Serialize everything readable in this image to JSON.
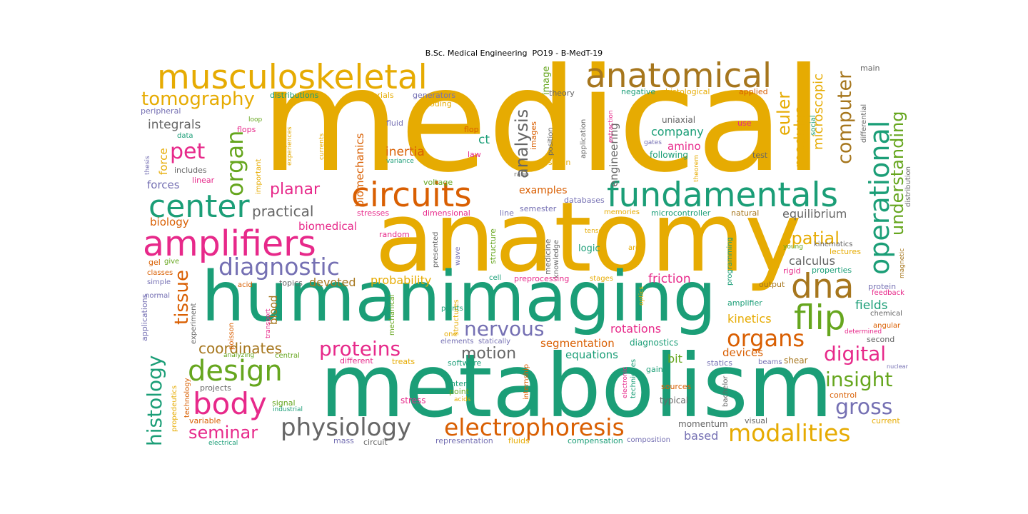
{
  "title": "B.Sc. Medical Engineering  PO19 - B-MedT-19",
  "colors": {
    "gold": "#e6ab02",
    "teal": "#1b9e77",
    "orange": "#d95f02",
    "magenta": "#e7298a",
    "purple": "#7570b3",
    "green": "#66a61e",
    "brown": "#a6761d",
    "gray": "#666666"
  },
  "words": [
    {
      "text": "medical",
      "color": "gold"
    },
    {
      "text": "anatomy",
      "color": "gold"
    },
    {
      "text": "metabolism",
      "color": "teal"
    },
    {
      "text": "human",
      "color": "teal"
    },
    {
      "text": "imaging",
      "color": "teal"
    },
    {
      "text": "musculoskeletal",
      "color": "gold"
    },
    {
      "text": "anatomical",
      "color": "brown"
    },
    {
      "text": "fundamentals",
      "color": "teal"
    },
    {
      "text": "amplifiers",
      "color": "magenta"
    },
    {
      "text": "circuits",
      "color": "orange"
    },
    {
      "text": "center",
      "color": "teal"
    },
    {
      "text": "diagnostic",
      "color": "purple"
    },
    {
      "text": "dna",
      "color": "brown"
    },
    {
      "text": "flip",
      "color": "green"
    },
    {
      "text": "design",
      "color": "green"
    },
    {
      "text": "body",
      "color": "magenta"
    },
    {
      "text": "physiology",
      "color": "gray"
    },
    {
      "text": "electrophoresis",
      "color": "orange"
    },
    {
      "text": "modalities",
      "color": "gold"
    },
    {
      "text": "operational",
      "color": "teal"
    },
    {
      "text": "understanding",
      "color": "green"
    },
    {
      "text": "computer",
      "color": "brown"
    },
    {
      "text": "organ",
      "color": "green"
    },
    {
      "text": "pet",
      "color": "magenta"
    },
    {
      "text": "tomography",
      "color": "gold"
    },
    {
      "text": "organs",
      "color": "orange"
    },
    {
      "text": "nervous",
      "color": "purple"
    },
    {
      "text": "proteins",
      "color": "magenta"
    },
    {
      "text": "digital",
      "color": "magenta"
    },
    {
      "text": "insight",
      "color": "green"
    },
    {
      "text": "gross",
      "color": "purple"
    },
    {
      "text": "histology",
      "color": "teal"
    },
    {
      "text": "tissue",
      "color": "orange"
    },
    {
      "text": "seminar",
      "color": "magenta"
    },
    {
      "text": "analysis",
      "color": "gray"
    },
    {
      "text": "spatial",
      "color": "gold"
    },
    {
      "text": "euler",
      "color": "gold"
    },
    {
      "text": "modulus",
      "color": "gold"
    },
    {
      "text": "microscopic",
      "color": "gold"
    },
    {
      "text": "practical",
      "color": "gray"
    },
    {
      "text": "planar",
      "color": "magenta"
    },
    {
      "text": "coordinates",
      "color": "brown"
    },
    {
      "text": "motion",
      "color": "gray"
    },
    {
      "text": "integrals",
      "color": "gray"
    },
    {
      "text": "biomechanics",
      "color": "orange"
    },
    {
      "text": "engineering",
      "color": "gray"
    },
    {
      "text": "image",
      "color": "green"
    },
    {
      "text": "inertia",
      "color": "orange"
    },
    {
      "text": "ct",
      "color": "teal"
    },
    {
      "text": "company",
      "color": "teal"
    },
    {
      "text": "amino",
      "color": "magenta"
    },
    {
      "text": "equilibrium",
      "color": "gray"
    },
    {
      "text": "calculus",
      "color": "gray"
    },
    {
      "text": "kinetics",
      "color": "gold"
    },
    {
      "text": "fields",
      "color": "teal"
    },
    {
      "text": "segmentation",
      "color": "orange"
    },
    {
      "text": "rotations",
      "color": "magenta"
    },
    {
      "text": "friction",
      "color": "magenta"
    },
    {
      "text": "probability",
      "color": "gold"
    },
    {
      "text": "devoted",
      "color": "brown"
    },
    {
      "text": "biomedical",
      "color": "magenta"
    },
    {
      "text": "biology",
      "color": "orange"
    },
    {
      "text": "forces",
      "color": "purple"
    },
    {
      "text": "force",
      "color": "gold"
    },
    {
      "text": "blood",
      "color": "brown"
    },
    {
      "text": "examples",
      "color": "orange"
    },
    {
      "text": "equations",
      "color": "teal"
    },
    {
      "text": "bit",
      "color": "green"
    },
    {
      "text": "devices",
      "color": "orange"
    },
    {
      "text": "based",
      "color": "purple"
    },
    {
      "text": "logic",
      "color": "teal"
    },
    {
      "text": "momentum",
      "color": "gray"
    },
    {
      "text": "includes",
      "color": "gray"
    },
    {
      "text": "data",
      "color": "teal"
    },
    {
      "text": "flops",
      "color": "magenta"
    },
    {
      "text": "loop",
      "color": "green"
    },
    {
      "text": "fluid",
      "color": "purple"
    },
    {
      "text": "flop",
      "color": "orange"
    },
    {
      "text": "law",
      "color": "magenta"
    },
    {
      "text": "images",
      "color": "orange"
    },
    {
      "text": "position",
      "color": "gray"
    },
    {
      "text": "strain",
      "color": "gold"
    },
    {
      "text": "application",
      "color": "gray"
    },
    {
      "text": "extraction",
      "color": "magenta"
    },
    {
      "text": "gates",
      "color": "purple"
    },
    {
      "text": "following",
      "color": "teal"
    },
    {
      "text": "uniaxial",
      "color": "gray"
    },
    {
      "text": "use",
      "color": "magenta"
    },
    {
      "text": "test",
      "color": "gray"
    },
    {
      "text": "theorem",
      "color": "gold"
    },
    {
      "text": "differential",
      "color": "gray"
    },
    {
      "text": "distribution",
      "color": "gray"
    },
    {
      "text": "social",
      "color": "teal"
    },
    {
      "text": "main",
      "color": "gray"
    },
    {
      "text": "applied",
      "color": "orange"
    },
    {
      "text": "histological",
      "color": "gold"
    },
    {
      "text": "negative",
      "color": "teal"
    },
    {
      "text": "theory",
      "color": "gray"
    },
    {
      "text": "materials",
      "color": "gold"
    },
    {
      "text": "generators",
      "color": "purple"
    },
    {
      "text": "coding",
      "color": "gold"
    },
    {
      "text": "distributions",
      "color": "teal"
    },
    {
      "text": "peripheral",
      "color": "purple"
    },
    {
      "text": "thesis",
      "color": "purple"
    },
    {
      "text": "experiences",
      "color": "gold"
    },
    {
      "text": "currents",
      "color": "gold"
    },
    {
      "text": "important",
      "color": "gold"
    },
    {
      "text": "variance",
      "color": "teal"
    },
    {
      "text": "ratio",
      "color": "gray"
    },
    {
      "text": "voltage",
      "color": "green"
    },
    {
      "text": "linear",
      "color": "magenta"
    },
    {
      "text": "dimensional",
      "color": "magenta"
    },
    {
      "text": "stresses",
      "color": "magenta"
    },
    {
      "text": "line",
      "color": "purple"
    },
    {
      "text": "databases",
      "color": "purple"
    },
    {
      "text": "semester",
      "color": "purple"
    },
    {
      "text": "memories",
      "color": "gold"
    },
    {
      "text": "microcontroller",
      "color": "teal"
    },
    {
      "text": "natural",
      "color": "brown"
    },
    {
      "text": "young",
      "color": "green"
    },
    {
      "text": "kinematics",
      "color": "gray"
    },
    {
      "text": "tensor",
      "color": "gold"
    },
    {
      "text": "random",
      "color": "magenta"
    },
    {
      "text": "presented",
      "color": "gray"
    },
    {
      "text": "wave",
      "color": "purple"
    },
    {
      "text": "structure",
      "color": "green"
    },
    {
      "text": "medicine",
      "color": "gray"
    },
    {
      "text": "knowledge",
      "color": "gray"
    },
    {
      "text": "area",
      "color": "gold"
    },
    {
      "text": "programming",
      "color": "teal"
    },
    {
      "text": "lectures",
      "color": "gold"
    },
    {
      "text": "magnetic",
      "color": "brown"
    },
    {
      "text": "rigid",
      "color": "magenta"
    },
    {
      "text": "properties",
      "color": "teal"
    },
    {
      "text": "gel",
      "color": "orange"
    },
    {
      "text": "give",
      "color": "green"
    },
    {
      "text": "classes",
      "color": "orange"
    },
    {
      "text": "simple",
      "color": "purple"
    },
    {
      "text": "normal",
      "color": "purple"
    },
    {
      "text": "applications",
      "color": "purple"
    },
    {
      "text": "acid",
      "color": "orange"
    },
    {
      "text": "topics",
      "color": "gray"
    },
    {
      "text": "experiment",
      "color": "gray"
    },
    {
      "text": "mechanical",
      "color": "green"
    },
    {
      "text": "structures",
      "color": "gold"
    },
    {
      "text": "cell",
      "color": "teal"
    },
    {
      "text": "preprocessing",
      "color": "magenta"
    },
    {
      "text": "stages",
      "color": "gold"
    },
    {
      "text": "optics",
      "color": "gold"
    },
    {
      "text": "output",
      "color": "brown"
    },
    {
      "text": "protein",
      "color": "purple"
    },
    {
      "text": "feedback",
      "color": "magenta"
    },
    {
      "text": "amplifier",
      "color": "teal"
    },
    {
      "text": "chemical",
      "color": "gray"
    },
    {
      "text": "angular",
      "color": "orange"
    },
    {
      "text": "determined",
      "color": "magenta"
    },
    {
      "text": "second",
      "color": "gray"
    },
    {
      "text": "poisson",
      "color": "orange"
    },
    {
      "text": "transport",
      "color": "magenta"
    },
    {
      "text": "points",
      "color": "teal"
    },
    {
      "text": "one",
      "color": "gold"
    },
    {
      "text": "elements",
      "color": "purple"
    },
    {
      "text": "statically",
      "color": "purple"
    },
    {
      "text": "diagnostics",
      "color": "teal"
    },
    {
      "text": "analyzing",
      "color": "green"
    },
    {
      "text": "central",
      "color": "green"
    },
    {
      "text": "different",
      "color": "magenta"
    },
    {
      "text": "treats",
      "color": "gold"
    },
    {
      "text": "software",
      "color": "teal"
    },
    {
      "text": "gain",
      "color": "teal"
    },
    {
      "text": "statics",
      "color": "purple"
    },
    {
      "text": "beams",
      "color": "purple"
    },
    {
      "text": "shear",
      "color": "brown"
    },
    {
      "text": "nuclear",
      "color": "purple"
    },
    {
      "text": "projects",
      "color": "gray"
    },
    {
      "text": "propedeutics",
      "color": "gold"
    },
    {
      "text": "technology",
      "color": "orange"
    },
    {
      "text": "intern",
      "color": "teal"
    },
    {
      "text": "point",
      "color": "green"
    },
    {
      "text": "acids",
      "color": "gold"
    },
    {
      "text": "internship",
      "color": "orange"
    },
    {
      "text": "electronic",
      "color": "magenta"
    },
    {
      "text": "techniques",
      "color": "teal"
    },
    {
      "text": "sources",
      "color": "orange"
    },
    {
      "text": "typical",
      "color": "gray"
    },
    {
      "text": "bachelor",
      "color": "gray"
    },
    {
      "text": "control",
      "color": "orange"
    },
    {
      "text": "signal",
      "color": "green"
    },
    {
      "text": "industrial",
      "color": "teal"
    },
    {
      "text": "stress",
      "color": "magenta"
    },
    {
      "text": "variable",
      "color": "orange"
    },
    {
      "text": "visual",
      "color": "gray"
    },
    {
      "text": "current",
      "color": "gold"
    },
    {
      "text": "electrical",
      "color": "teal"
    },
    {
      "text": "mass",
      "color": "purple"
    },
    {
      "text": "circuit",
      "color": "gray"
    },
    {
      "text": "representation",
      "color": "purple"
    },
    {
      "text": "fluids",
      "color": "gold"
    },
    {
      "text": "compensation",
      "color": "teal"
    },
    {
      "text": "composition",
      "color": "purple"
    }
  ]
}
